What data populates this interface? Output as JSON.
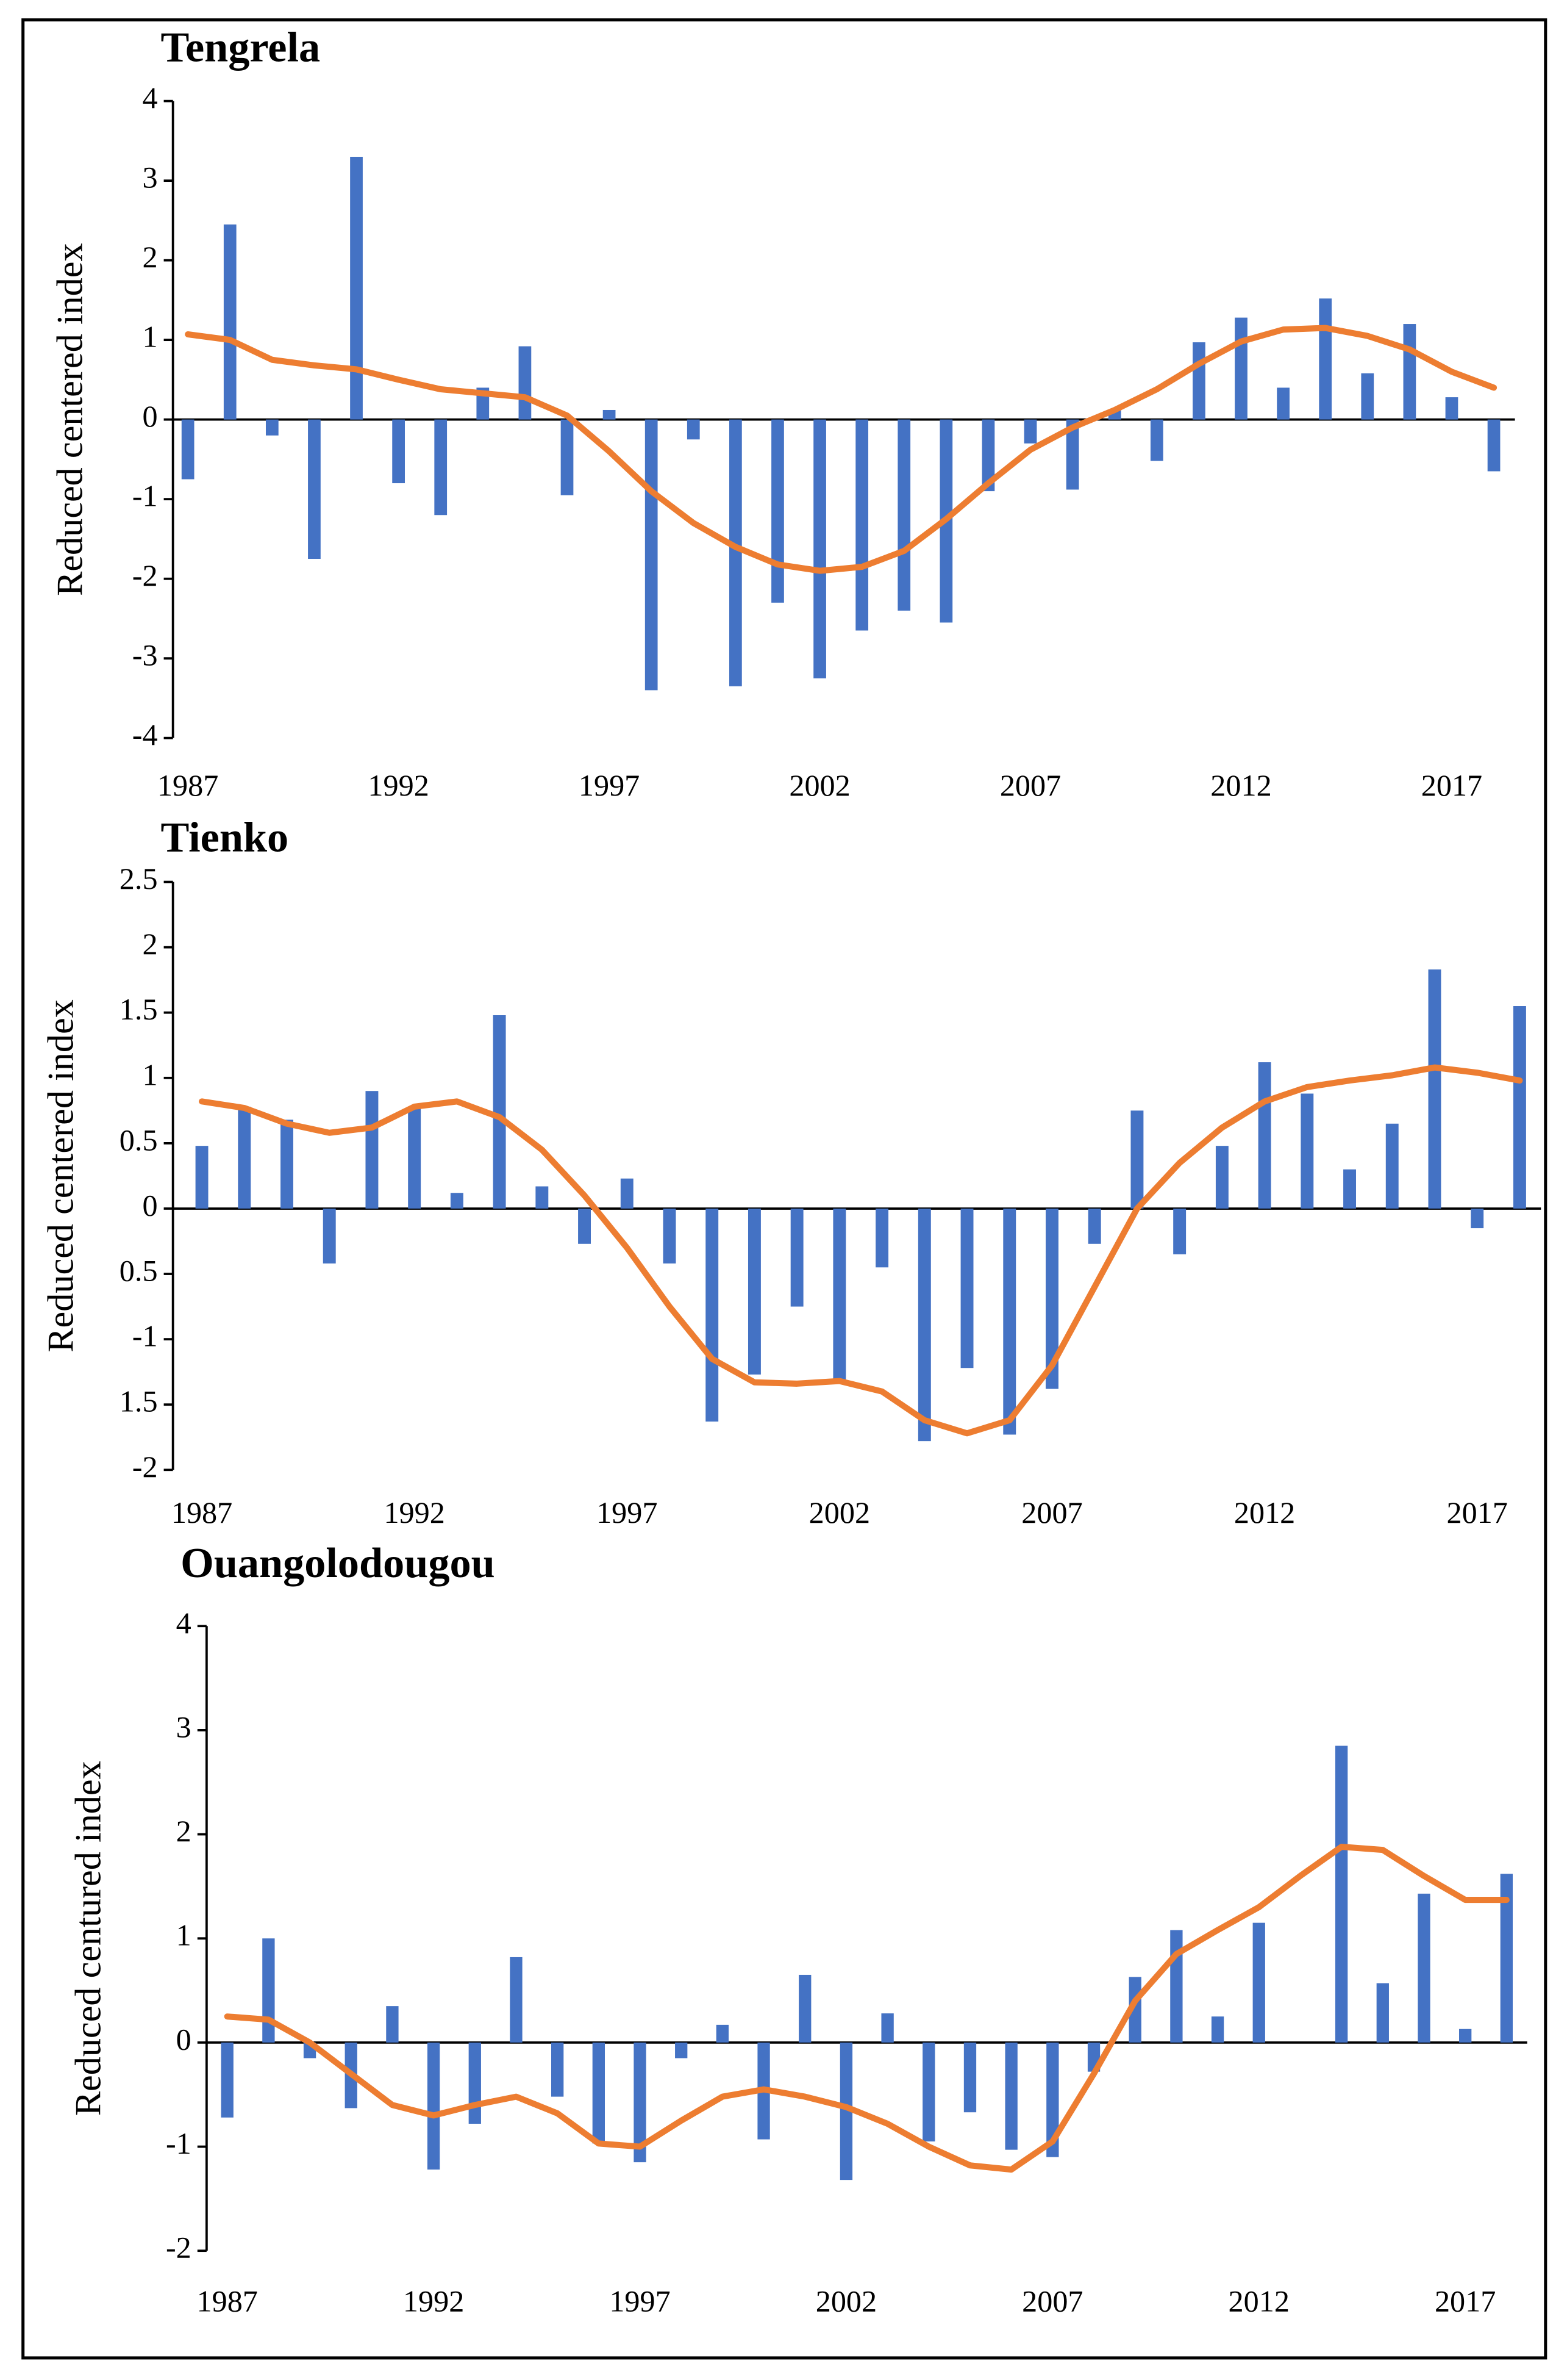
{
  "chart_data": [
    {
      "type": "bar",
      "title": "Tengrela",
      "y_label": "Reduced centered index",
      "categories": [
        "1987",
        null,
        null,
        null,
        null,
        "1992",
        null,
        null,
        null,
        null,
        "1997",
        null,
        null,
        null,
        null,
        "2002",
        null,
        null,
        null,
        null,
        "2007",
        null,
        null,
        null,
        null,
        "2012",
        null,
        null,
        null,
        null,
        "2017",
        null
      ],
      "ylim": [
        -4,
        4
      ],
      "yticks": [
        -4,
        -3,
        -2,
        -1,
        0,
        1,
        2,
        3,
        4
      ],
      "series": [
        {
          "type": "bar",
          "color": "#4472c4",
          "values": [
            -0.75,
            2.45,
            -0.2,
            -1.75,
            3.3,
            -0.8,
            -1.2,
            0.4,
            0.92,
            -0.95,
            0.12,
            -3.4,
            -0.25,
            -3.35,
            -2.3,
            -3.25,
            -2.65,
            -2.4,
            -2.55,
            -0.9,
            -0.3,
            -0.88,
            0.12,
            -0.52,
            0.97,
            1.28,
            0.4,
            1.52,
            0.58,
            1.2,
            0.28,
            -0.65
          ]
        },
        {
          "type": "line",
          "color": "#ed7d31",
          "values": [
            1.07,
            1.0,
            0.75,
            0.68,
            0.63,
            0.5,
            0.38,
            0.33,
            0.28,
            0.05,
            -0.4,
            -0.9,
            -1.3,
            -1.6,
            -1.82,
            -1.9,
            -1.85,
            -1.65,
            -1.25,
            -0.8,
            -0.38,
            -0.1,
            0.12,
            0.38,
            0.7,
            0.98,
            1.13,
            1.15,
            1.05,
            0.88,
            0.6,
            0.4
          ]
        }
      ]
    },
    {
      "type": "bar",
      "title": "Tienko",
      "y_label": "Reduced centered index",
      "categories": [
        "1987",
        null,
        null,
        null,
        null,
        "1992",
        null,
        null,
        null,
        null,
        "1997",
        null,
        null,
        null,
        null,
        "2002",
        null,
        null,
        null,
        null,
        "2007",
        null,
        null,
        null,
        null,
        "2012",
        null,
        null,
        null,
        null,
        "2017",
        null
      ],
      "ylim": [
        -2,
        2.5
      ],
      "yticks": [
        -2,
        {
          "value": -1.5,
          "label": "1.5"
        },
        -1,
        {
          "value": -0.5,
          "label": "0.5"
        },
        0,
        0.5,
        1,
        1.5,
        2,
        2.5
      ],
      "series": [
        {
          "type": "bar",
          "color": "#4472c4",
          "values": [
            0.48,
            0.78,
            0.68,
            -0.42,
            0.9,
            0.78,
            0.12,
            1.48,
            0.17,
            -0.27,
            0.23,
            -0.42,
            -1.63,
            -1.27,
            -0.75,
            -1.33,
            -0.45,
            -1.78,
            -1.22,
            -1.73,
            -1.38,
            -0.27,
            0.75,
            -0.35,
            0.48,
            1.12,
            0.88,
            0.3,
            0.65,
            1.83,
            -0.15,
            1.55
          ]
        },
        {
          "type": "line",
          "color": "#ed7d31",
          "values": [
            0.82,
            0.77,
            0.65,
            0.58,
            0.62,
            0.78,
            0.82,
            0.7,
            0.45,
            0.1,
            -0.3,
            -0.75,
            -1.15,
            -1.33,
            -1.34,
            -1.32,
            -1.4,
            -1.62,
            -1.72,
            -1.62,
            -1.2,
            -0.6,
            0,
            0.35,
            0.62,
            0.82,
            0.93,
            0.98,
            1.02,
            1.08,
            1.04,
            0.98
          ]
        }
      ]
    },
    {
      "type": "bar",
      "title": "Ouangolodougou",
      "y_label": "Reduced centured index",
      "categories": [
        "1987",
        null,
        null,
        null,
        null,
        "1992",
        null,
        null,
        null,
        null,
        "1997",
        null,
        null,
        null,
        null,
        "2002",
        null,
        null,
        null,
        null,
        "2007",
        null,
        null,
        null,
        null,
        "2012",
        null,
        null,
        null,
        null,
        "2017",
        null
      ],
      "ylim": [
        -2,
        4
      ],
      "yticks": [
        -2,
        -1,
        0,
        1,
        2,
        3,
        4
      ],
      "series": [
        {
          "type": "bar",
          "color": "#4472c4",
          "values": [
            -0.72,
            1.0,
            -0.15,
            -0.63,
            0.35,
            -1.22,
            -0.78,
            0.82,
            -0.52,
            -0.97,
            -1.15,
            -0.15,
            0.17,
            -0.93,
            0.65,
            -1.32,
            0.28,
            -0.95,
            -0.67,
            -1.03,
            -1.1,
            -0.28,
            0.63,
            1.08,
            0.25,
            1.15,
            0,
            2.85,
            0.57,
            1.43,
            0.13,
            1.62
          ]
        },
        {
          "type": "line",
          "color": "#ed7d31",
          "values": [
            0.25,
            0.22,
            0.0,
            -0.3,
            -0.6,
            -0.7,
            -0.6,
            -0.52,
            -0.68,
            -0.97,
            -1.0,
            -0.75,
            -0.52,
            -0.45,
            -0.52,
            -0.62,
            -0.78,
            -1.0,
            -1.18,
            -1.22,
            -0.95,
            -0.3,
            0.4,
            0.85,
            1.08,
            1.3,
            1.6,
            1.88,
            1.85,
            1.6,
            1.37,
            1.37
          ]
        }
      ]
    }
  ]
}
